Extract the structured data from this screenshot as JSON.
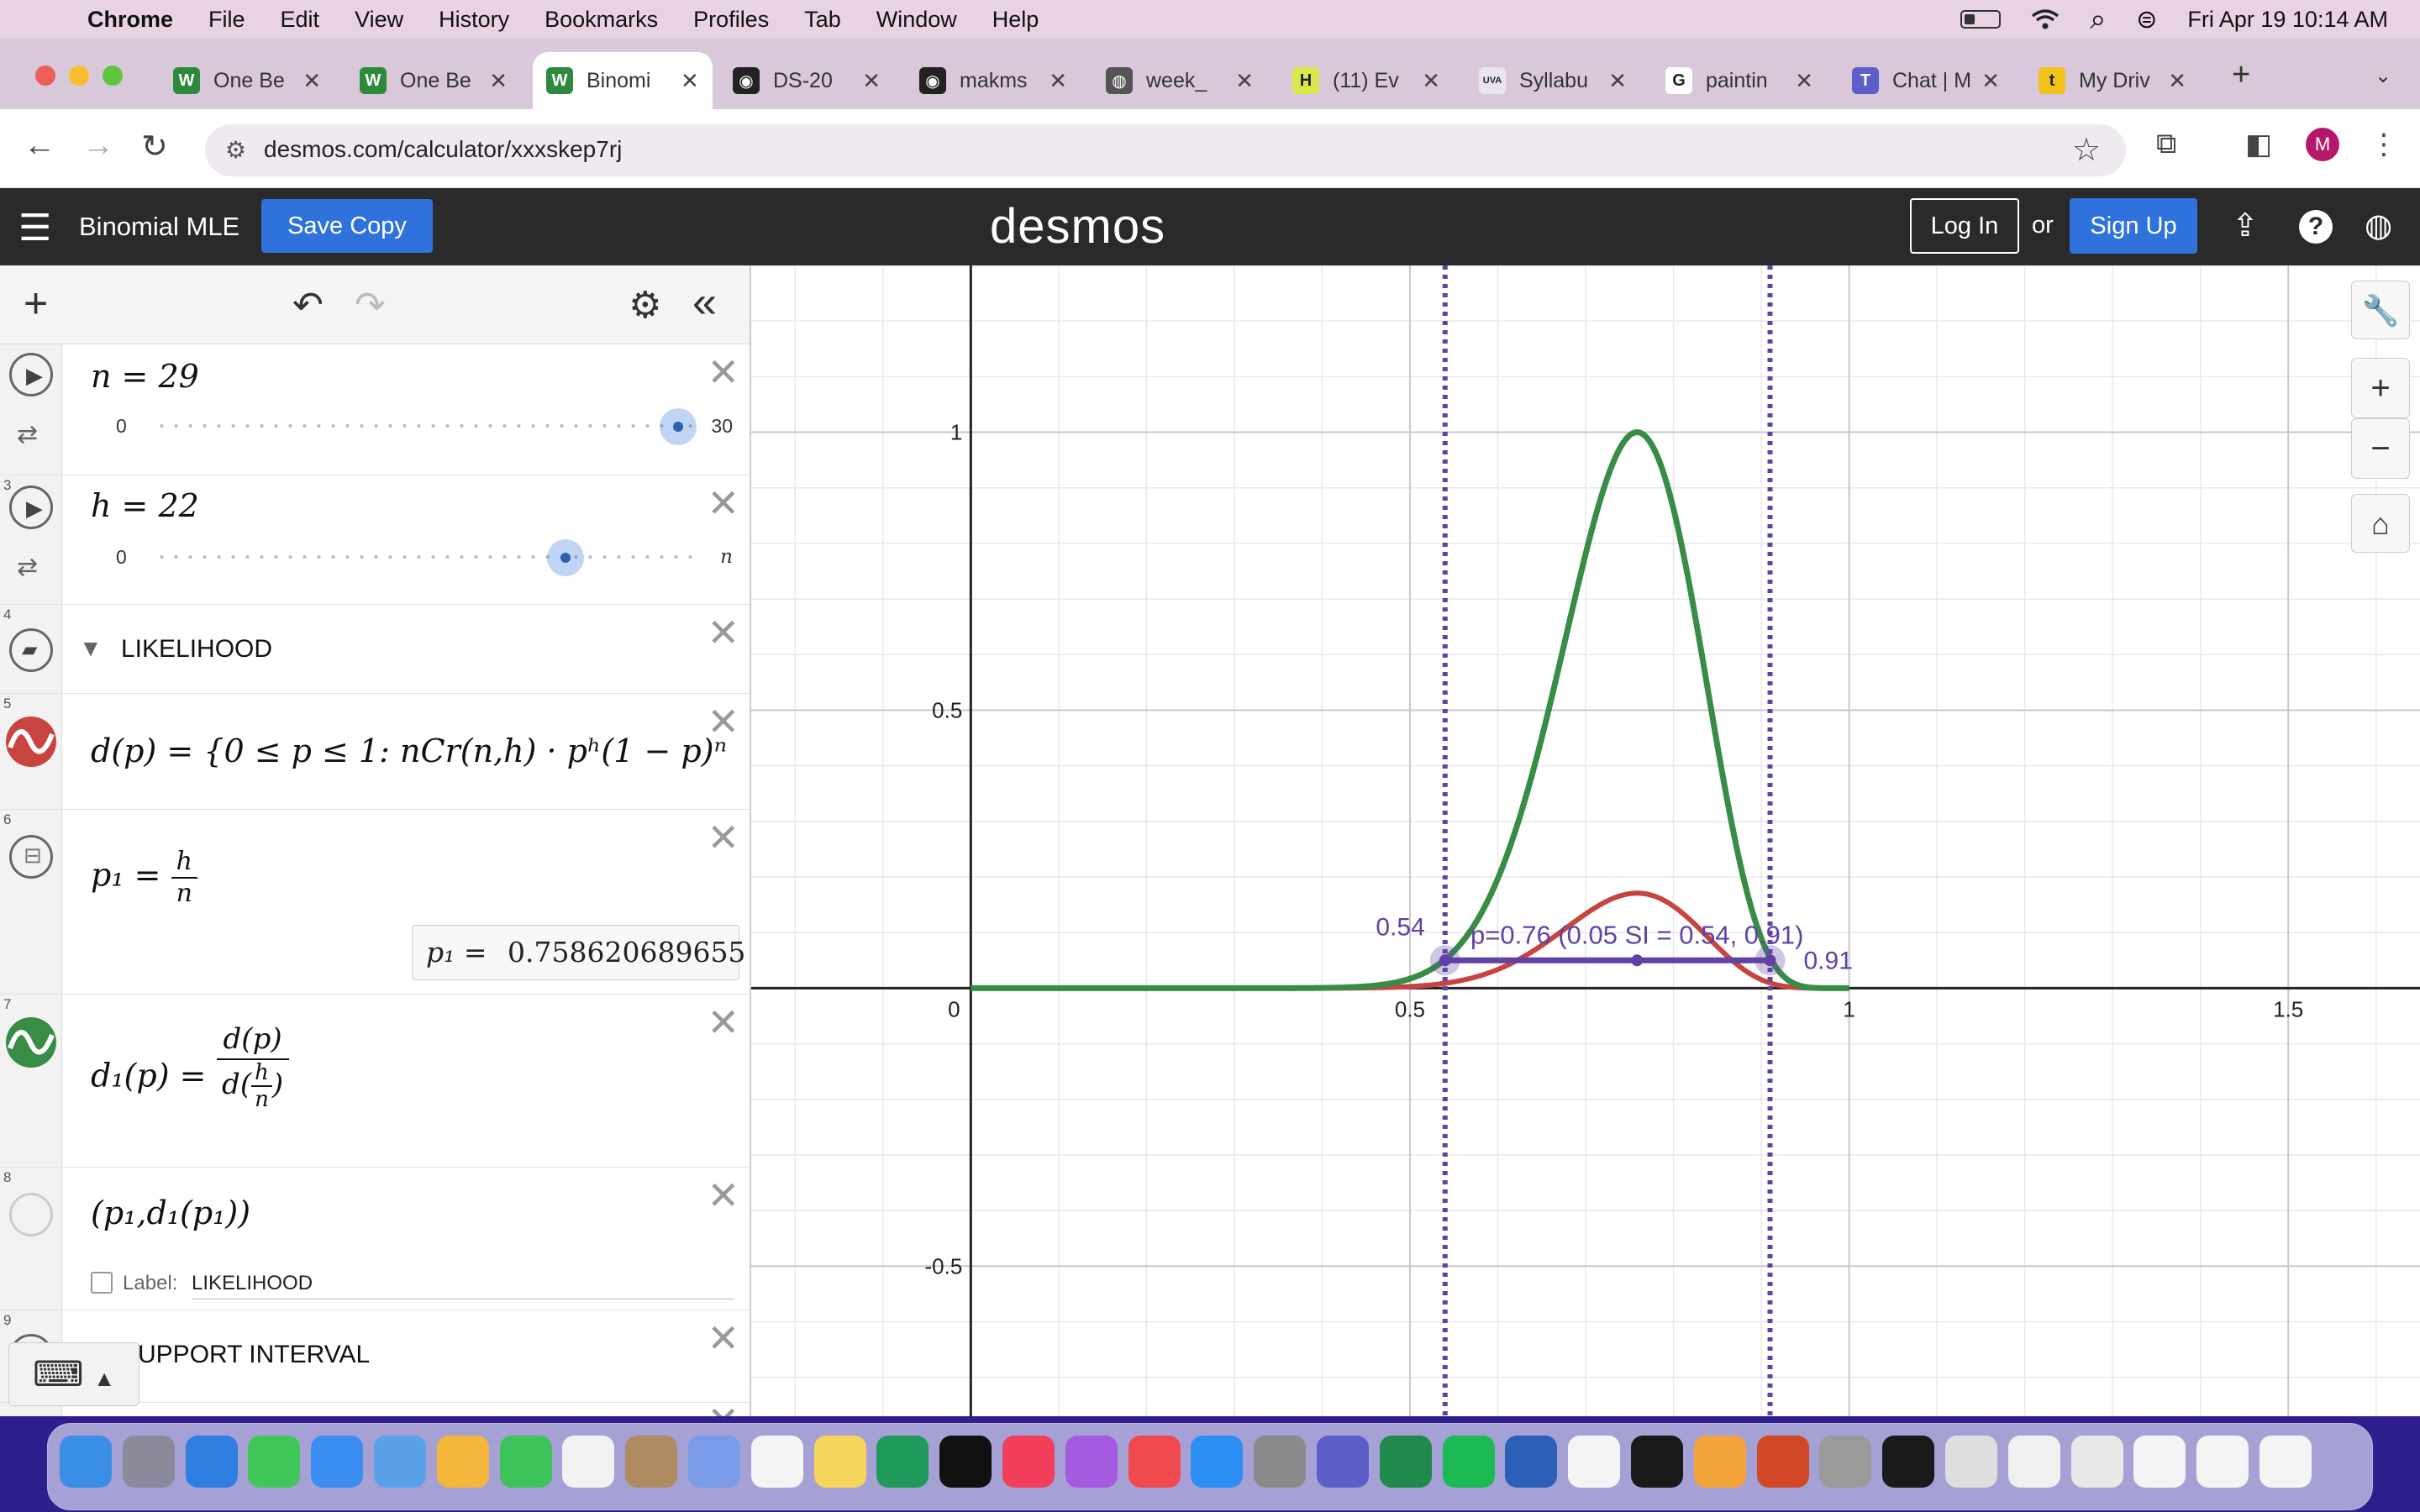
{
  "menubar": {
    "app": "Chrome",
    "items": [
      "File",
      "Edit",
      "View",
      "History",
      "Bookmarks",
      "Profiles",
      "Tab",
      "Window",
      "Help"
    ],
    "datetime": "Fri Apr 19  10:14 AM"
  },
  "tabs": [
    {
      "label": "One Be",
      "fav_color": "#2d8a3d",
      "fav": "W"
    },
    {
      "label": "One Be",
      "fav_color": "#2d8a3d",
      "fav": "W"
    },
    {
      "label": "Binomi",
      "fav_color": "#2d8a3d",
      "fav": "W",
      "active": true
    },
    {
      "label": "DS-20",
      "fav_color": "#222222",
      "fav": "◉"
    },
    {
      "label": "makms",
      "fav_color": "#222222",
      "fav": "◉"
    },
    {
      "label": "week_",
      "fav_color": "#555555",
      "fav": "◍"
    },
    {
      "label": "(11) Ev",
      "fav_color": "#d9e84a",
      "fav": "H"
    },
    {
      "label": "Syllabu",
      "fav_color": "#e9e3f0",
      "fav": "UVA"
    },
    {
      "label": "paintin",
      "fav_color": "#ffffff",
      "fav": "G"
    },
    {
      "label": "Chat | M",
      "fav_color": "#5b5fc7",
      "fav": "T"
    },
    {
      "label": "My Driv",
      "fav_color": "#f2c218",
      "fav": "t"
    }
  ],
  "address": {
    "url": "desmos.com/calculator/xxxskep7rj"
  },
  "header": {
    "title": "Binomial MLE",
    "save_copy": "Save Copy",
    "logo": "desmos",
    "login": "Log In",
    "or": "or",
    "signup": "Sign Up"
  },
  "expressions": {
    "e2": {
      "index": "",
      "math": "n = 29",
      "min": "0",
      "max": "30",
      "value": 29,
      "range": [
        0,
        30
      ]
    },
    "e3": {
      "index": "3",
      "math": "h = 22",
      "min": "0",
      "max": "n",
      "value": 22,
      "range": [
        0,
        29
      ]
    },
    "e4": {
      "index": "4",
      "title": "LIKELIHOOD"
    },
    "e5": {
      "index": "5",
      "math": "d(p) = {0 ≤ p ≤ 1: nCr(n,h) · pʰ(1 − p)ⁿ"
    },
    "e6": {
      "index": "6",
      "lhs": "p₁ = ",
      "num": "h",
      "den": "n",
      "eval_label": "p₁  =",
      "eval_value": "0.758620689655"
    },
    "e7": {
      "index": "7",
      "lhs": "d₁(p)  = ",
      "num": "d(p)",
      "den_pre": "d",
      "den_num": "h",
      "den_den": "n"
    },
    "e8": {
      "index": "8",
      "math": "(p₁,d₁(p₁))",
      "label_caption": "Label:",
      "label_value": "LIKELIHOOD"
    },
    "e9": {
      "index": "9",
      "title": "SUPPORT INTERVAL"
    }
  },
  "graph": {
    "x_ticks": [
      "0",
      "0.5",
      "1",
      "1.5"
    ],
    "y_ticks": [
      "1",
      "0.5",
      "-0.5"
    ],
    "label_left": "0.54",
    "label_right": "0.91",
    "label_main": "p=0.76 (0.05 SI = 0.54, 0.91)",
    "xlim": [
      -0.25,
      1.65
    ],
    "ylim": [
      -0.77,
      1.3
    ],
    "n": 29,
    "h": 22,
    "mle": 0.7586,
    "si_lower": 0.54,
    "si_upper": 0.91,
    "si_level": 0.05,
    "colors": {
      "likelihood": "#c74440",
      "normalized": "#388c46",
      "interval": "#6042a6"
    }
  },
  "icons": {
    "apple": "",
    "wifi": "wifi-icon",
    "search": "⌕",
    "control": "⊜"
  }
}
